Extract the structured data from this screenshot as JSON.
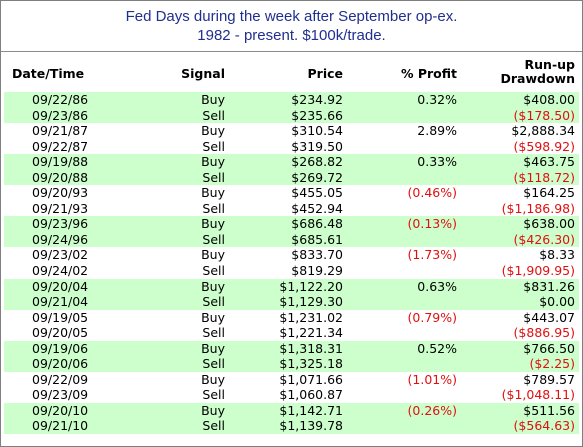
{
  "title": {
    "line1": "Fed Days during the week after September op-ex.",
    "line2": "1982 - present.  $100k/trade."
  },
  "headers": {
    "date": "Date/Time",
    "signal": "Signal",
    "price": "Price",
    "profit": "% Profit",
    "runup_line1": "Run-up",
    "runup_line2": "Drawdown"
  },
  "colors": {
    "shade": "#ccffcc",
    "negative": "#e01010",
    "title": "#1f2f8f"
  },
  "rows": [
    {
      "date": "09/22/86",
      "signal": "Buy",
      "price": "$234.92",
      "profit": "0.32%",
      "runup": "$408.00",
      "profit_neg": false,
      "runup_neg": false
    },
    {
      "date": "09/23/86",
      "signal": "Sell",
      "price": "$235.66",
      "profit": "",
      "runup": "($178.50)",
      "profit_neg": false,
      "runup_neg": true
    },
    {
      "date": "09/21/87",
      "signal": "Buy",
      "price": "$310.54",
      "profit": "2.89%",
      "runup": "$2,888.34",
      "profit_neg": false,
      "runup_neg": false
    },
    {
      "date": "09/22/87",
      "signal": "Sell",
      "price": "$319.50",
      "profit": "",
      "runup": "($598.92)",
      "profit_neg": false,
      "runup_neg": true
    },
    {
      "date": "09/19/88",
      "signal": "Buy",
      "price": "$268.82",
      "profit": "0.33%",
      "runup": "$463.75",
      "profit_neg": false,
      "runup_neg": false
    },
    {
      "date": "09/20/88",
      "signal": "Sell",
      "price": "$269.72",
      "profit": "",
      "runup": "($118.72)",
      "profit_neg": false,
      "runup_neg": true
    },
    {
      "date": "09/20/93",
      "signal": "Buy",
      "price": "$455.05",
      "profit": "(0.46%)",
      "runup": "$164.25",
      "profit_neg": true,
      "runup_neg": false
    },
    {
      "date": "09/21/93",
      "signal": "Sell",
      "price": "$452.94",
      "profit": "",
      "runup": "($1,186.98)",
      "profit_neg": false,
      "runup_neg": true
    },
    {
      "date": "09/23/96",
      "signal": "Buy",
      "price": "$686.48",
      "profit": "(0.13%)",
      "runup": "$638.00",
      "profit_neg": true,
      "runup_neg": false
    },
    {
      "date": "09/24/96",
      "signal": "Sell",
      "price": "$685.61",
      "profit": "",
      "runup": "($426.30)",
      "profit_neg": false,
      "runup_neg": true
    },
    {
      "date": "09/23/02",
      "signal": "Buy",
      "price": "$833.70",
      "profit": "(1.73%)",
      "runup": "$8.33",
      "profit_neg": true,
      "runup_neg": false
    },
    {
      "date": "09/24/02",
      "signal": "Sell",
      "price": "$819.29",
      "profit": "",
      "runup": "($1,909.95)",
      "profit_neg": false,
      "runup_neg": true
    },
    {
      "date": "09/20/04",
      "signal": "Buy",
      "price": "$1,122.20",
      "profit": "0.63%",
      "runup": "$831.26",
      "profit_neg": false,
      "runup_neg": false
    },
    {
      "date": "09/21/04",
      "signal": "Sell",
      "price": "$1,129.30",
      "profit": "",
      "runup": "$0.00",
      "profit_neg": false,
      "runup_neg": false
    },
    {
      "date": "09/19/05",
      "signal": "Buy",
      "price": "$1,231.02",
      "profit": "(0.79%)",
      "runup": "$443.07",
      "profit_neg": true,
      "runup_neg": false
    },
    {
      "date": "09/20/05",
      "signal": "Sell",
      "price": "$1,221.34",
      "profit": "",
      "runup": "($886.95)",
      "profit_neg": false,
      "runup_neg": true
    },
    {
      "date": "09/19/06",
      "signal": "Buy",
      "price": "$1,318.31",
      "profit": "0.52%",
      "runup": "$766.50",
      "profit_neg": false,
      "runup_neg": false
    },
    {
      "date": "09/20/06",
      "signal": "Sell",
      "price": "$1,325.18",
      "profit": "",
      "runup": "($2.25)",
      "profit_neg": false,
      "runup_neg": true
    },
    {
      "date": "09/22/09",
      "signal": "Buy",
      "price": "$1,071.66",
      "profit": "(1.01%)",
      "runup": "$789.57",
      "profit_neg": true,
      "runup_neg": false
    },
    {
      "date": "09/23/09",
      "signal": "Sell",
      "price": "$1,060.87",
      "profit": "",
      "runup": "($1,048.11)",
      "profit_neg": false,
      "runup_neg": true
    },
    {
      "date": "09/20/10",
      "signal": "Buy",
      "price": "$1,142.71",
      "profit": "(0.26%)",
      "runup": "$511.56",
      "profit_neg": true,
      "runup_neg": false
    },
    {
      "date": "09/21/10",
      "signal": "Sell",
      "price": "$1,139.78",
      "profit": "",
      "runup": "($564.63)",
      "profit_neg": false,
      "runup_neg": true
    }
  ]
}
